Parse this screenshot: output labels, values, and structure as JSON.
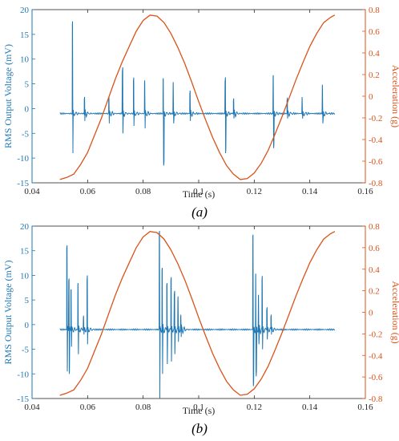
{
  "chart_data": [
    {
      "type": "line",
      "panel_label": "(a)",
      "xlabel": "Time (s)",
      "ylabel": "RMS Output Voltage (mV)",
      "y2label": "Acceleration (g)",
      "xlim": [
        0.04,
        0.16
      ],
      "ylim": [
        -15,
        20
      ],
      "y2lim": [
        -0.8,
        0.8
      ],
      "x_ticks": [
        "0.04",
        "0.06",
        "0.08",
        "0.1",
        "0.12",
        "0.14",
        "0.16"
      ],
      "y_ticks": [
        "-15",
        "-10",
        "-5",
        "0",
        "5",
        "10",
        "15",
        "20"
      ],
      "y2_ticks": [
        "-0.8",
        "-0.6",
        "-0.4",
        "-0.2",
        "0",
        "0.2",
        "0.4",
        "0.6",
        "0.8"
      ],
      "grid": false,
      "colors": {
        "voltage": "#1f77b4",
        "acceleration": "#d95319"
      },
      "series": [
        {
          "axis": "left",
          "baseline": -1,
          "x_range": [
            0.05,
            0.149
          ],
          "spikes": [
            [
              0.0545,
              17,
              -9
            ],
            [
              0.0588,
              1.8,
              -2.5
            ],
            [
              0.0676,
              1.8,
              -3
            ],
            [
              0.0725,
              7.5,
              -5
            ],
            [
              0.0765,
              5.5,
              -3.5
            ],
            [
              0.0805,
              5.2,
              -4
            ],
            [
              0.0872,
              5.8,
              -11.5
            ],
            [
              0.0908,
              5,
              -3
            ],
            [
              0.0968,
              3,
              -2.5
            ],
            [
              0.1095,
              5.5,
              -9
            ],
            [
              0.1125,
              1.5,
              -2
            ],
            [
              0.1268,
              6.5,
              -8
            ],
            [
              0.1318,
              1.5,
              -2
            ],
            [
              0.1372,
              2,
              -2
            ],
            [
              0.1445,
              4.5,
              -3
            ]
          ]
        },
        {
          "axis": "right",
          "phase_start": 0.05,
          "min_value": -0.77,
          "max_value": 0.75,
          "points": [
            [
              0.05,
              -0.77
            ],
            [
              0.0525,
              -0.75
            ],
            [
              0.055,
              -0.72
            ],
            [
              0.0575,
              -0.63
            ],
            [
              0.06,
              -0.52
            ],
            [
              0.0625,
              -0.36
            ],
            [
              0.065,
              -0.2
            ],
            [
              0.0675,
              -0.02
            ],
            [
              0.07,
              0.16
            ],
            [
              0.0725,
              0.32
            ],
            [
              0.075,
              0.46
            ],
            [
              0.0775,
              0.6
            ],
            [
              0.08,
              0.7
            ],
            [
              0.0825,
              0.75
            ],
            [
              0.085,
              0.74
            ],
            [
              0.0875,
              0.68
            ],
            [
              0.09,
              0.58
            ],
            [
              0.0925,
              0.45
            ],
            [
              0.095,
              0.3
            ],
            [
              0.0975,
              0.13
            ],
            [
              0.1,
              -0.05
            ],
            [
              0.1025,
              -0.22
            ],
            [
              0.105,
              -0.38
            ],
            [
              0.1075,
              -0.52
            ],
            [
              0.11,
              -0.64
            ],
            [
              0.1125,
              -0.72
            ],
            [
              0.115,
              -0.77
            ],
            [
              0.1175,
              -0.76
            ],
            [
              0.12,
              -0.71
            ],
            [
              0.1225,
              -0.62
            ],
            [
              0.125,
              -0.5
            ],
            [
              0.1275,
              -0.35
            ],
            [
              0.13,
              -0.19
            ],
            [
              0.1325,
              -0.02
            ],
            [
              0.135,
              0.15
            ],
            [
              0.1375,
              0.31
            ],
            [
              0.14,
              0.46
            ],
            [
              0.1425,
              0.58
            ],
            [
              0.145,
              0.68
            ],
            [
              0.1475,
              0.73
            ],
            [
              0.149,
              0.75
            ]
          ]
        }
      ]
    },
    {
      "type": "line",
      "panel_label": "(b)",
      "xlabel": "Time (s)",
      "ylabel": "RMS Output Voltage (mV)",
      "y2label": "Acceleration (g)",
      "xlim": [
        0.04,
        0.16
      ],
      "ylim": [
        -15,
        20
      ],
      "y2lim": [
        -0.8,
        0.8
      ],
      "x_ticks": [
        "0.04",
        "0.06",
        "0.08",
        "0.1",
        "0.12",
        "0.14",
        "0.16"
      ],
      "y_ticks": [
        "-15",
        "-10",
        "-5",
        "0",
        "5",
        "10",
        "15",
        "20"
      ],
      "y2_ticks": [
        "-0.8",
        "-0.6",
        "-0.4",
        "-0.2",
        "0",
        "0.2",
        "0.4",
        "0.6",
        "0.8"
      ],
      "grid": false,
      "colors": {
        "voltage": "#1f77b4",
        "acceleration": "#d95319"
      },
      "series": [
        {
          "axis": "left",
          "baseline": -1,
          "x_range": [
            0.05,
            0.149
          ],
          "spikes": [
            [
              0.0525,
              15.5,
              -9.5
            ],
            [
              0.0532,
              9,
              -10
            ],
            [
              0.054,
              7,
              -4.5
            ],
            [
              0.0565,
              8,
              -6
            ],
            [
              0.0585,
              1.5,
              -2
            ],
            [
              0.0598,
              9,
              -4
            ],
            [
              0.0858,
              18.5,
              -15
            ],
            [
              0.0868,
              11,
              -10
            ],
            [
              0.0885,
              8,
              -8
            ],
            [
              0.09,
              9,
              -7.5
            ],
            [
              0.0912,
              6,
              -6
            ],
            [
              0.0925,
              5,
              -3.5
            ],
            [
              0.0935,
              1.5,
              -2.5
            ],
            [
              0.1195,
              18,
              -12.5
            ],
            [
              0.1205,
              10,
              -10.5
            ],
            [
              0.1215,
              6,
              -4
            ],
            [
              0.1228,
              9,
              -5
            ],
            [
              0.1245,
              3,
              -3
            ],
            [
              0.126,
              1.5,
              -2
            ]
          ]
        },
        {
          "axis": "right",
          "phase_start": 0.05,
          "min_value": -0.77,
          "max_value": 0.75,
          "points": [
            [
              0.05,
              -0.77
            ],
            [
              0.0525,
              -0.75
            ],
            [
              0.055,
              -0.72
            ],
            [
              0.0575,
              -0.63
            ],
            [
              0.06,
              -0.52
            ],
            [
              0.0625,
              -0.36
            ],
            [
              0.065,
              -0.2
            ],
            [
              0.0675,
              -0.02
            ],
            [
              0.07,
              0.16
            ],
            [
              0.0725,
              0.32
            ],
            [
              0.075,
              0.46
            ],
            [
              0.0775,
              0.6
            ],
            [
              0.08,
              0.7
            ],
            [
              0.0825,
              0.75
            ],
            [
              0.085,
              0.74
            ],
            [
              0.0875,
              0.68
            ],
            [
              0.09,
              0.58
            ],
            [
              0.0925,
              0.45
            ],
            [
              0.095,
              0.3
            ],
            [
              0.0975,
              0.13
            ],
            [
              0.1,
              -0.05
            ],
            [
              0.1025,
              -0.22
            ],
            [
              0.105,
              -0.38
            ],
            [
              0.1075,
              -0.52
            ],
            [
              0.11,
              -0.64
            ],
            [
              0.1125,
              -0.72
            ],
            [
              0.115,
              -0.77
            ],
            [
              0.1175,
              -0.76
            ],
            [
              0.12,
              -0.71
            ],
            [
              0.1225,
              -0.62
            ],
            [
              0.125,
              -0.5
            ],
            [
              0.1275,
              -0.35
            ],
            [
              0.13,
              -0.19
            ],
            [
              0.1325,
              -0.02
            ],
            [
              0.135,
              0.15
            ],
            [
              0.1375,
              0.31
            ],
            [
              0.14,
              0.46
            ],
            [
              0.1425,
              0.58
            ],
            [
              0.145,
              0.68
            ],
            [
              0.1475,
              0.73
            ],
            [
              0.149,
              0.75
            ]
          ]
        }
      ]
    }
  ]
}
